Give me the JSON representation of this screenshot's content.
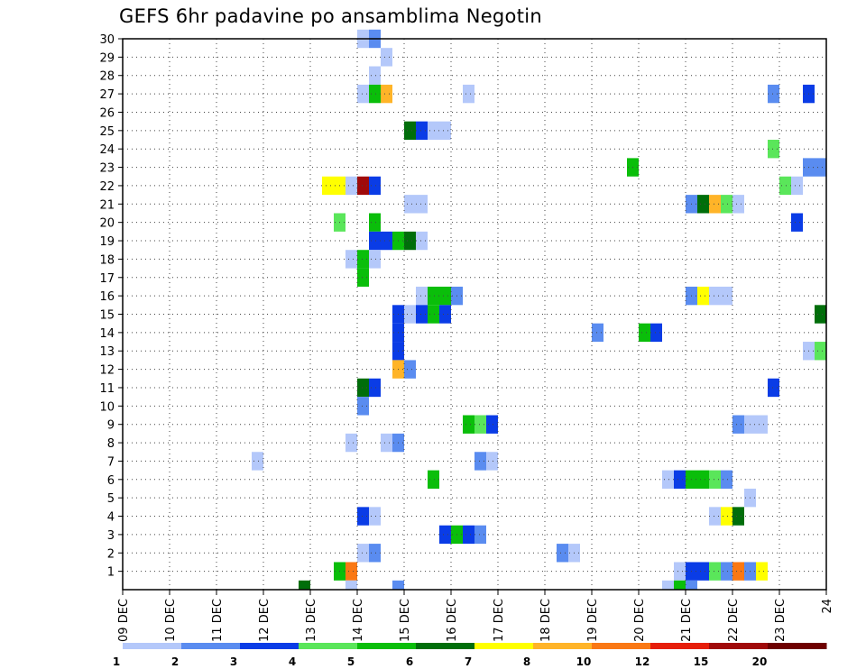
{
  "chart_data": {
    "type": "heatmap",
    "title": "GEFS 6hr padavine po ansamblima Negotin",
    "x_tick_labels": [
      "09 DEC",
      "10 DEC",
      "11 DEC",
      "12 DEC",
      "13 DEC",
      "14 DEC",
      "15 DEC",
      "16 DEC",
      "17 DEC",
      "18 DEC",
      "19 DEC",
      "20 DEC",
      "21 DEC",
      "22 DEC",
      "23 DEC",
      "24"
    ],
    "y_tick_labels": [
      "1",
      "2",
      "3",
      "4",
      "5",
      "6",
      "7",
      "8",
      "9",
      "10",
      "11",
      "12",
      "13",
      "14",
      "15",
      "16",
      "17",
      "18",
      "19",
      "20",
      "21",
      "22",
      "23",
      "24",
      "25",
      "26",
      "27",
      "28",
      "29",
      "30"
    ],
    "xlim": [
      0,
      15
    ],
    "ylim": [
      0,
      30
    ],
    "grid": true,
    "legend": {
      "position": "bottom",
      "labels": [
        "1",
        "2",
        "3",
        "4",
        "5",
        "6",
        "7",
        "8",
        "10",
        "12",
        "15",
        "20"
      ],
      "colors": [
        "#b4c8fa",
        "#5a8cf0",
        "#0a3ce6",
        "#5ae65a",
        "#0abe0a",
        "#006e0a",
        "#ffff00",
        "#ffb428",
        "#fa7814",
        "#e61e0a",
        "#a00a0a",
        "#6e0000"
      ]
    },
    "cells": [
      [
        30,
        5.0,
        1
      ],
      [
        30,
        5.25,
        2
      ],
      [
        29,
        5.5,
        1
      ],
      [
        28,
        5.25,
        1
      ],
      [
        27,
        5.0,
        1
      ],
      [
        27,
        5.25,
        5
      ],
      [
        27,
        5.5,
        8
      ],
      [
        27,
        7.25,
        1
      ],
      [
        27,
        13.75,
        2
      ],
      [
        27,
        14.5,
        3
      ],
      [
        25,
        6.0,
        6
      ],
      [
        25,
        6.25,
        3
      ],
      [
        25,
        6.5,
        1
      ],
      [
        25,
        6.75,
        1
      ],
      [
        24,
        13.75,
        4
      ],
      [
        23,
        10.75,
        5
      ],
      [
        23,
        14.5,
        2
      ],
      [
        23,
        14.75,
        2
      ],
      [
        22,
        4.25,
        7
      ],
      [
        22,
        4.5,
        7
      ],
      [
        22,
        4.75,
        1
      ],
      [
        22,
        5.0,
        11
      ],
      [
        22,
        5.25,
        3
      ],
      [
        22,
        14.0,
        4
      ],
      [
        22,
        14.25,
        1
      ],
      [
        21,
        6.0,
        1
      ],
      [
        21,
        6.25,
        1
      ],
      [
        21,
        12.0,
        2
      ],
      [
        21,
        12.25,
        6
      ],
      [
        21,
        12.5,
        8
      ],
      [
        21,
        12.75,
        4
      ],
      [
        21,
        13.0,
        1
      ],
      [
        20,
        4.5,
        4
      ],
      [
        20,
        5.25,
        5
      ],
      [
        20,
        14.25,
        3
      ],
      [
        19,
        5.25,
        3
      ],
      [
        19,
        5.5,
        3
      ],
      [
        19,
        5.75,
        5
      ],
      [
        19,
        6.0,
        6
      ],
      [
        19,
        6.25,
        1
      ],
      [
        18,
        4.75,
        1
      ],
      [
        18,
        5.0,
        5
      ],
      [
        18,
        5.25,
        1
      ],
      [
        17,
        5.0,
        5
      ],
      [
        16,
        6.25,
        1
      ],
      [
        16,
        6.5,
        5
      ],
      [
        16,
        6.75,
        5
      ],
      [
        16,
        7.0,
        2
      ],
      [
        16,
        12.0,
        2
      ],
      [
        16,
        12.25,
        7
      ],
      [
        16,
        12.5,
        1
      ],
      [
        16,
        12.75,
        1
      ],
      [
        15,
        5.75,
        3
      ],
      [
        15,
        6.0,
        1
      ],
      [
        15,
        6.25,
        3
      ],
      [
        15,
        6.5,
        5
      ],
      [
        15,
        6.75,
        3
      ],
      [
        15,
        14.75,
        6
      ],
      [
        14,
        5.75,
        3
      ],
      [
        14,
        10.0,
        2
      ],
      [
        14,
        11.0,
        5
      ],
      [
        14,
        11.25,
        3
      ],
      [
        13,
        5.75,
        3
      ],
      [
        13,
        14.5,
        1
      ],
      [
        13,
        14.75,
        4
      ],
      [
        12,
        5.75,
        8
      ],
      [
        12,
        6.0,
        2
      ],
      [
        11,
        5.0,
        6
      ],
      [
        11,
        5.25,
        3
      ],
      [
        11,
        13.75,
        3
      ],
      [
        10,
        5.0,
        2
      ],
      [
        9,
        7.25,
        5
      ],
      [
        9,
        7.5,
        4
      ],
      [
        9,
        7.75,
        3
      ],
      [
        9,
        13.0,
        2
      ],
      [
        9,
        13.25,
        1
      ],
      [
        9,
        13.5,
        1
      ],
      [
        8,
        4.75,
        1
      ],
      [
        8,
        5.5,
        1
      ],
      [
        8,
        5.75,
        2
      ],
      [
        7,
        2.75,
        1
      ],
      [
        7,
        7.5,
        2
      ],
      [
        7,
        7.75,
        1
      ],
      [
        6,
        11.5,
        1
      ],
      [
        6,
        11.75,
        3
      ],
      [
        6,
        12.0,
        5
      ],
      [
        6,
        12.25,
        5
      ],
      [
        6,
        12.5,
        4
      ],
      [
        6,
        12.75,
        2
      ],
      [
        5,
        13.25,
        1
      ],
      [
        4,
        5.0,
        3
      ],
      [
        4,
        5.25,
        1
      ],
      [
        4,
        12.5,
        1
      ],
      [
        4,
        12.75,
        7
      ],
      [
        4,
        13.0,
        6
      ],
      [
        3,
        6.75,
        3
      ],
      [
        6,
        6.5,
        5
      ],
      [
        3,
        7.0,
        5
      ],
      [
        3,
        7.25,
        3
      ],
      [
        3,
        7.5,
        2
      ],
      [
        2,
        5.0,
        1
      ],
      [
        2,
        5.25,
        2
      ],
      [
        2,
        9.25,
        2
      ],
      [
        2,
        9.5,
        1
      ],
      [
        1,
        4.5,
        5
      ],
      [
        1,
        4.75,
        9
      ],
      [
        1,
        11.75,
        1
      ],
      [
        1,
        12.0,
        3
      ],
      [
        1,
        12.25,
        3
      ],
      [
        1,
        12.5,
        4
      ],
      [
        1,
        12.75,
        2
      ],
      [
        1,
        13.0,
        9
      ],
      [
        1,
        13.25,
        2
      ],
      [
        1,
        13.5,
        7
      ],
      [
        0,
        3.75,
        6
      ],
      [
        0,
        4.75,
        1
      ],
      [
        0,
        5.75,
        2
      ],
      [
        0,
        11.5,
        1
      ],
      [
        0,
        11.75,
        5
      ],
      [
        0,
        12.0,
        2
      ]
    ]
  }
}
